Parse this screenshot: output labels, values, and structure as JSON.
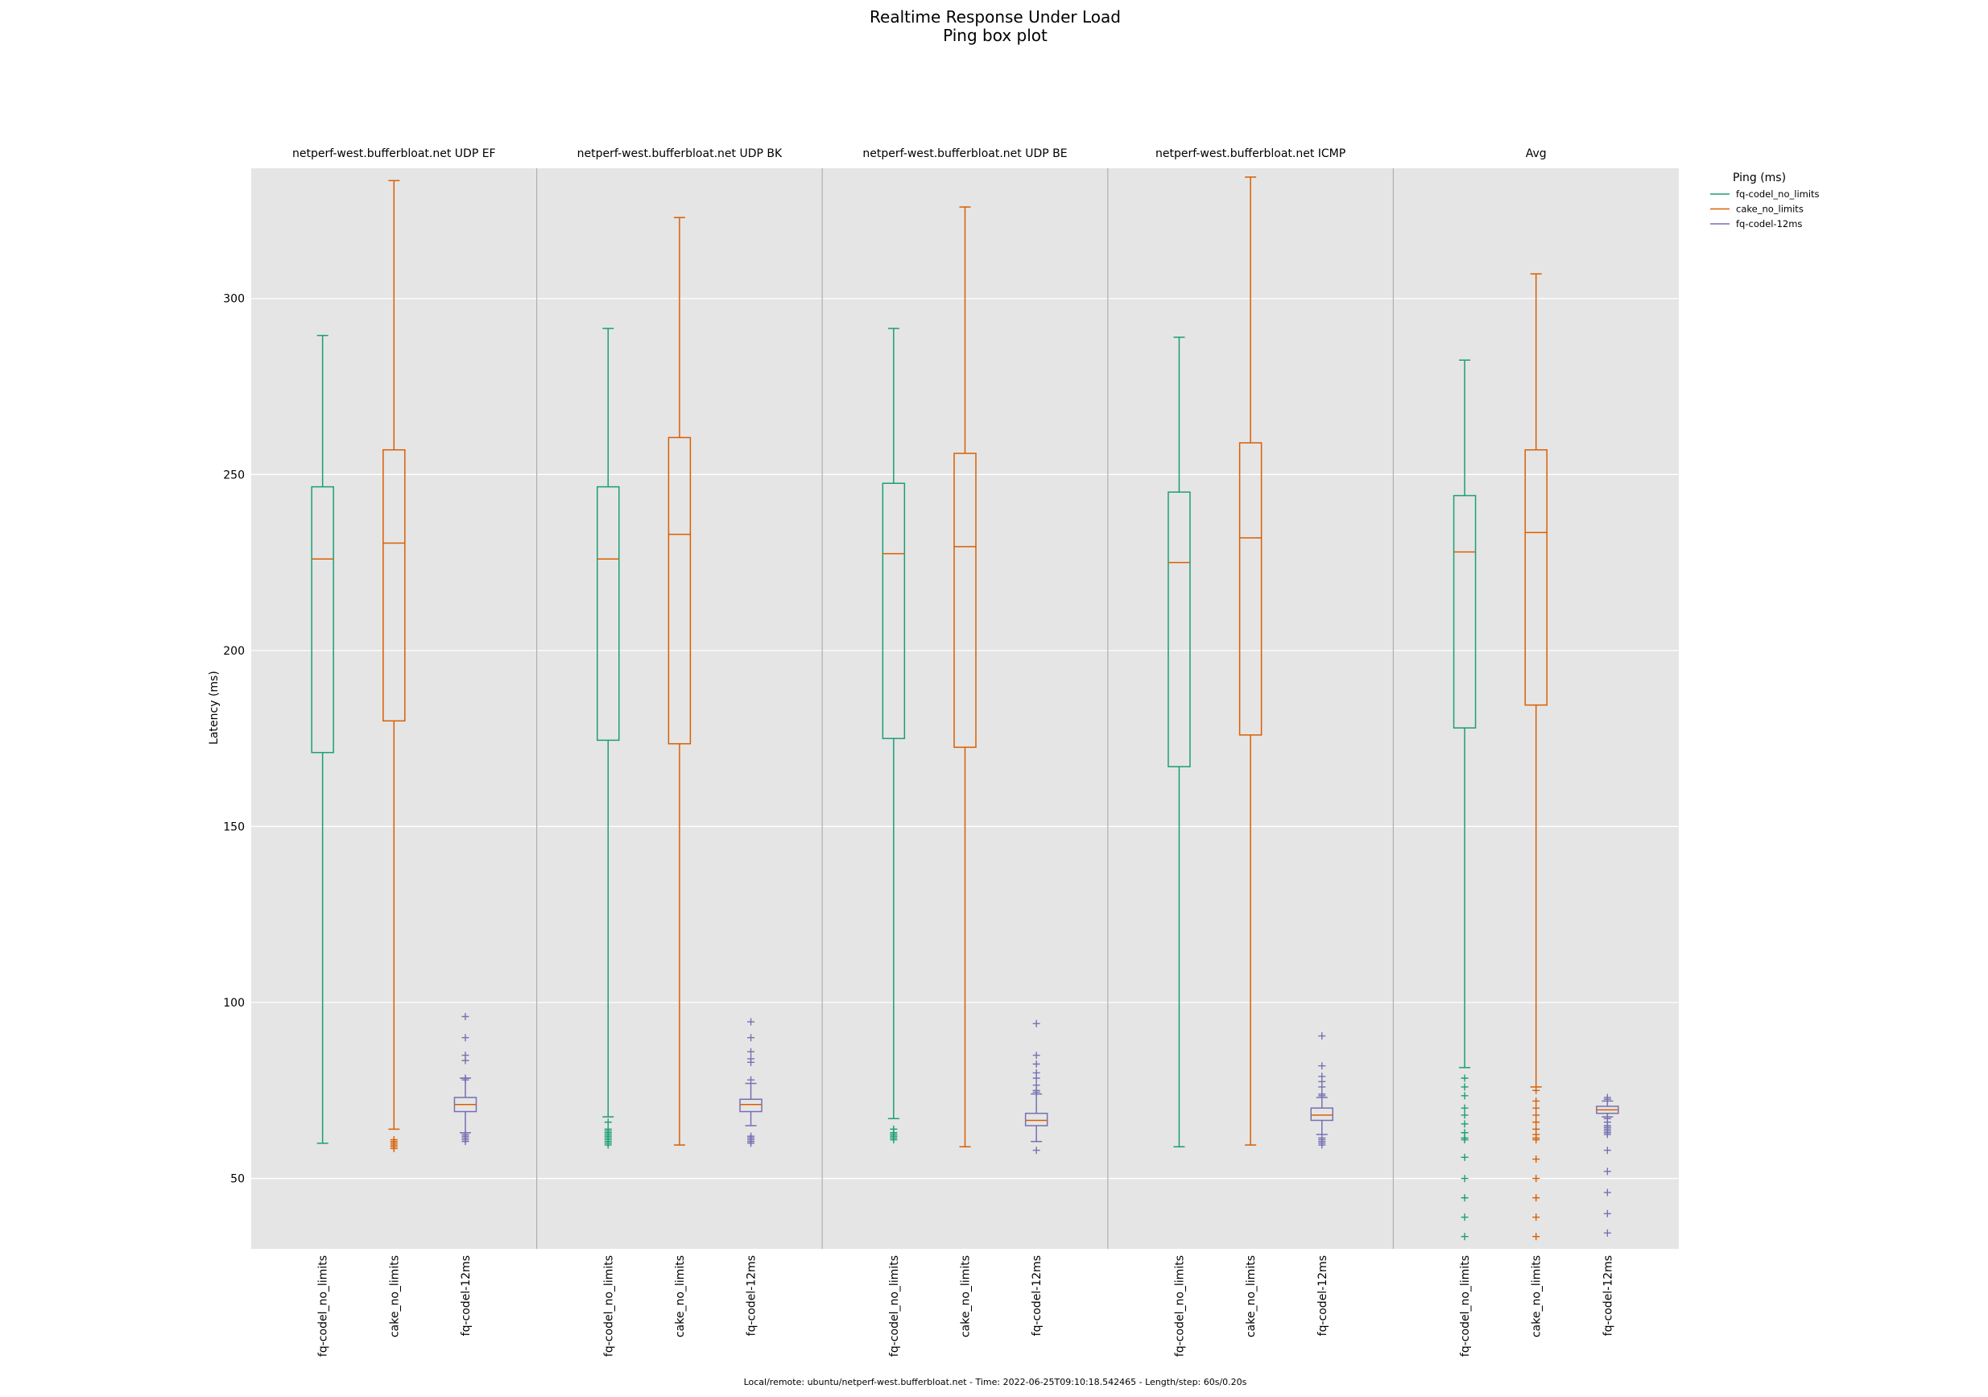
{
  "title": "Realtime Response Under Load",
  "subtitle": "Ping box plot",
  "footer": "Local/remote: ubuntu/netperf-west.bufferbloat.net - Time: 2022-06-25T09:10:18.542465 - Length/step: 60s/0.20s",
  "chart_data": {
    "type": "box",
    "ylabel": "Latency (ms)",
    "ylim": [
      30,
      337
    ],
    "yticks": [
      50,
      100,
      150,
      200,
      250,
      300
    ],
    "grid": true,
    "legend_title": "Ping (ms)",
    "legend_position": "outside-right",
    "series": [
      {
        "name": "fq-codel_no_limits",
        "color": "#1b9e77"
      },
      {
        "name": "cake_no_limits",
        "color": "#d95f02"
      },
      {
        "name": "fq-codel-12ms",
        "color": "#7570b3"
      }
    ],
    "panels": [
      {
        "title": "netperf-west.bufferbloat.net UDP EF",
        "boxes": [
          {
            "label": "fq-codel_no_limits",
            "whisker_low": 60,
            "q1": 171,
            "median": 226,
            "q3": 246.5,
            "whisker_high": 289.5,
            "outliers": []
          },
          {
            "label": "cake_no_limits",
            "whisker_low": 64,
            "q1": 180,
            "median": 230.5,
            "q3": 257,
            "whisker_high": 333.5,
            "outliers": [
              58.5,
              59,
              59.5,
              60,
              60.5,
              61
            ]
          },
          {
            "label": "fq-codel-12ms",
            "whisker_low": 63,
            "q1": 69,
            "median": 71,
            "q3": 73,
            "whisker_high": 78.5,
            "outliers": [
              60.5,
              61,
              61.5,
              62,
              62.5,
              78,
              78.5,
              83.5,
              85,
              90,
              96
            ]
          }
        ]
      },
      {
        "title": "netperf-west.bufferbloat.net UDP BK",
        "boxes": [
          {
            "label": "fq-codel_no_limits",
            "whisker_low": 67.5,
            "q1": 174.5,
            "median": 226,
            "q3": 246.5,
            "whisker_high": 291.5,
            "outliers": [
              59.5,
              60,
              60.5,
              61,
              61.5,
              62,
              62.5,
              63,
              63.5,
              64,
              66
            ]
          },
          {
            "label": "cake_no_limits",
            "whisker_low": 59.5,
            "q1": 173.5,
            "median": 233,
            "q3": 260.5,
            "whisker_high": 323,
            "outliers": []
          },
          {
            "label": "fq-codel-12ms",
            "whisker_low": 65,
            "q1": 69,
            "median": 71,
            "q3": 72.5,
            "whisker_high": 77,
            "outliers": [
              60,
              60.5,
              61,
              61.5,
              62,
              78,
              83,
              84,
              86,
              90,
              94.5
            ]
          }
        ]
      },
      {
        "title": "netperf-west.bufferbloat.net UDP BE",
        "boxes": [
          {
            "label": "fq-codel_no_limits",
            "whisker_low": 67,
            "q1": 175,
            "median": 227.5,
            "q3": 247.5,
            "whisker_high": 291.5,
            "outliers": [
              61,
              61.5,
              62,
              62.5,
              63,
              64
            ]
          },
          {
            "label": "cake_no_limits",
            "whisker_low": 59,
            "q1": 172.5,
            "median": 229.5,
            "q3": 256,
            "whisker_high": 326,
            "outliers": []
          },
          {
            "label": "fq-codel-12ms",
            "whisker_low": 60.5,
            "q1": 65,
            "median": 66.5,
            "q3": 68.5,
            "whisker_high": 74,
            "outliers": [
              58,
              74.5,
              75,
              76.5,
              78.5,
              80,
              82.5,
              85,
              94
            ]
          }
        ]
      },
      {
        "title": "netperf-west.bufferbloat.net ICMP",
        "boxes": [
          {
            "label": "fq-codel_no_limits",
            "whisker_low": 59,
            "q1": 167,
            "median": 225,
            "q3": 245,
            "whisker_high": 289,
            "outliers": []
          },
          {
            "label": "cake_no_limits",
            "whisker_low": 59.5,
            "q1": 176,
            "median": 232,
            "q3": 259,
            "whisker_high": 334.5,
            "outliers": []
          },
          {
            "label": "fq-codel-12ms",
            "whisker_low": 62.5,
            "q1": 66.5,
            "median": 68,
            "q3": 70,
            "whisker_high": 73,
            "outliers": [
              59.5,
              60,
              60.5,
              61,
              61.5,
              73.5,
              74,
              76,
              77.5,
              79,
              82,
              90.5
            ]
          }
        ]
      },
      {
        "title": "Avg",
        "boxes": [
          {
            "label": "fq-codel_no_limits",
            "whisker_low": 81.5,
            "q1": 178,
            "median": 228,
            "q3": 244,
            "whisker_high": 282.5,
            "outliers": [
              33.5,
              39,
              44.5,
              50,
              56,
              61,
              61.5,
              63,
              65.5,
              68,
              70,
              73.5,
              76,
              78.5
            ]
          },
          {
            "label": "cake_no_limits",
            "whisker_low": 76,
            "q1": 184.5,
            "median": 233.5,
            "q3": 257,
            "whisker_high": 307,
            "outliers": [
              33.5,
              39,
              44.5,
              50,
              55.5,
              61,
              61.5,
              62.5,
              64,
              66,
              68,
              70,
              72,
              75
            ]
          },
          {
            "label": "fq-codel-12ms",
            "whisker_low": 67.5,
            "q1": 68.5,
            "median": 69.5,
            "q3": 70.5,
            "whisker_high": 72,
            "outliers": [
              34.5,
              40,
              46,
              52,
              58,
              62.5,
              63,
              63.5,
              64,
              64.5,
              65,
              66,
              67,
              72.5,
              73
            ]
          }
        ]
      }
    ]
  }
}
